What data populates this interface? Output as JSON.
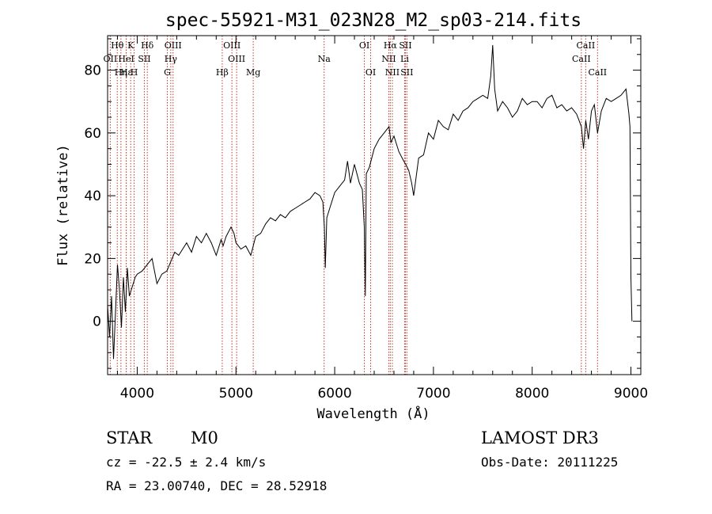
{
  "chart_data": {
    "type": "line",
    "title": "spec-55921-M31_023N28_M2_sp03-214.fits",
    "xlabel": "Wavelength (Å)",
    "ylabel": "Flux (relative)",
    "xlim": [
      3700,
      9100
    ],
    "ylim": [
      -17,
      91
    ],
    "xticks": [
      4000,
      5000,
      6000,
      7000,
      8000,
      9000
    ],
    "yticks": [
      0,
      20,
      40,
      60,
      80
    ],
    "grid": false,
    "series": [
      {
        "name": "spectrum",
        "x": [
          3700,
          3720,
          3740,
          3760,
          3780,
          3800,
          3820,
          3840,
          3860,
          3880,
          3900,
          3920,
          3950,
          3980,
          4000,
          4050,
          4100,
          4150,
          4200,
          4250,
          4300,
          4340,
          4380,
          4420,
          4460,
          4500,
          4550,
          4600,
          4650,
          4700,
          4750,
          4800,
          4850,
          4870,
          4900,
          4950,
          4980,
          5000,
          5050,
          5100,
          5150,
          5200,
          5250,
          5300,
          5350,
          5400,
          5450,
          5500,
          5550,
          5600,
          5650,
          5700,
          5750,
          5800,
          5850,
          5880,
          5895,
          5905,
          5920,
          5950,
          6000,
          6050,
          6100,
          6130,
          6160,
          6200,
          6250,
          6280,
          6300,
          6310,
          6320,
          6350,
          6400,
          6450,
          6500,
          6550,
          6570,
          6600,
          6650,
          6700,
          6720,
          6750,
          6780,
          6800,
          6850,
          6900,
          6950,
          7000,
          7050,
          7100,
          7150,
          7200,
          7250,
          7300,
          7350,
          7400,
          7450,
          7500,
          7550,
          7580,
          7600,
          7620,
          7650,
          7700,
          7750,
          7800,
          7850,
          7900,
          7950,
          8000,
          8050,
          8100,
          8150,
          8200,
          8250,
          8300,
          8350,
          8400,
          8450,
          8498,
          8520,
          8542,
          8570,
          8600,
          8630,
          8662,
          8700,
          8750,
          8800,
          8850,
          8900,
          8950,
          8980,
          8990,
          9000,
          9010
        ],
        "y": [
          5,
          -5,
          8,
          -12,
          3,
          18,
          10,
          -2,
          14,
          3,
          17,
          8,
          11,
          14,
          15,
          16,
          18,
          20,
          12,
          15,
          16,
          19,
          22,
          21,
          23,
          25,
          22,
          27,
          25,
          28,
          25,
          21,
          26,
          24,
          27,
          30,
          28,
          25,
          23,
          24,
          21,
          27,
          28,
          31,
          33,
          32,
          34,
          33,
          35,
          36,
          37,
          38,
          39,
          41,
          40,
          38,
          30,
          17,
          33,
          36,
          41,
          43,
          45,
          51,
          44,
          50,
          44,
          42,
          30,
          8,
          47,
          49,
          55,
          58,
          60,
          62,
          57,
          59,
          54,
          51,
          50,
          48,
          44,
          40,
          52,
          53,
          60,
          58,
          64,
          62,
          61,
          66,
          64,
          67,
          68,
          70,
          71,
          72,
          71,
          78,
          88,
          74,
          67,
          70,
          68,
          65,
          67,
          71,
          69,
          70,
          70,
          68,
          71,
          72,
          68,
          69,
          67,
          68,
          66,
          62,
          55,
          64,
          58,
          67,
          69,
          60,
          67,
          71,
          70,
          71,
          72,
          74,
          66,
          62,
          14,
          0
        ]
      }
    ],
    "spectral_lines": [
      {
        "label": "Hθ",
        "x": 3798,
        "row": 1
      },
      {
        "label": "OII",
        "x": 3727,
        "row": 2
      },
      {
        "label": "Hε",
        "x": 3889,
        "row": 3
      },
      {
        "label": "Hη",
        "x": 3835,
        "row": 3
      },
      {
        "label": "K",
        "x": 3934,
        "row": 1
      },
      {
        "label": "HeI",
        "x": 3889,
        "row": 2
      },
      {
        "label": "SII",
        "x": 4072,
        "row": 2
      },
      {
        "label": "H",
        "x": 3969,
        "row": 3
      },
      {
        "label": "Hδ",
        "x": 4102,
        "row": 1
      },
      {
        "label": "OIII",
        "x": 4363,
        "row": 1
      },
      {
        "label": "Hγ",
        "x": 4340,
        "row": 2
      },
      {
        "label": "G",
        "x": 4305,
        "row": 3
      },
      {
        "label": "OIII",
        "x": 4959,
        "row": 1
      },
      {
        "label": "OIII",
        "x": 5007,
        "row": 2
      },
      {
        "label": "Hβ",
        "x": 4861,
        "row": 3
      },
      {
        "label": "Mg",
        "x": 5175,
        "row": 3
      },
      {
        "label": "Na",
        "x": 5893,
        "row": 2
      },
      {
        "label": "OI",
        "x": 6300,
        "row": 1
      },
      {
        "label": "OI",
        "x": 6364,
        "row": 3
      },
      {
        "label": "Hα",
        "x": 6563,
        "row": 1
      },
      {
        "label": "SII",
        "x": 6716,
        "row": 1
      },
      {
        "label": "NII",
        "x": 6548,
        "row": 2
      },
      {
        "label": "Li",
        "x": 6708,
        "row": 2
      },
      {
        "label": "NII",
        "x": 6584,
        "row": 3
      },
      {
        "label": "SII",
        "x": 6731,
        "row": 3
      },
      {
        "label": "CaII",
        "x": 8542,
        "row": 1
      },
      {
        "label": "CaII",
        "x": 8498,
        "row": 2
      },
      {
        "label": "CaII",
        "x": 8662,
        "row": 3
      }
    ]
  },
  "info": {
    "object_class": "STAR",
    "subclass": "M0",
    "survey": "LAMOST DR3",
    "redshift": "cz = -22.5 ± 2.4 km/s",
    "obs_date": "Obs-Date: 20111225",
    "coords": "RA =  23.00740, DEC =  28.52918"
  }
}
